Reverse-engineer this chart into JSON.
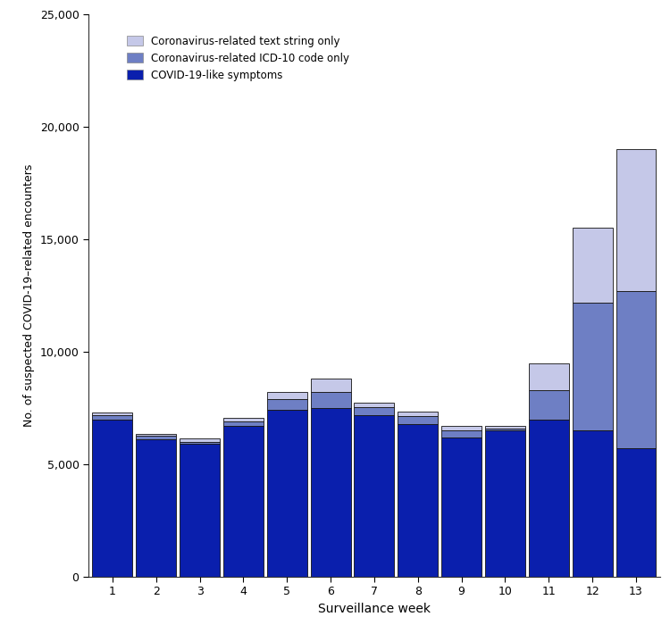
{
  "weeks": [
    1,
    2,
    3,
    4,
    5,
    6,
    7,
    8,
    9,
    10,
    11,
    12,
    13
  ],
  "covid_like": [
    7000,
    6100,
    5900,
    6700,
    7400,
    7500,
    7200,
    6800,
    6200,
    6500,
    7000,
    6500,
    5700
  ],
  "icd10_only": [
    200,
    150,
    100,
    200,
    500,
    700,
    350,
    350,
    300,
    100,
    1300,
    5700,
    7000
  ],
  "text_only": [
    100,
    100,
    150,
    150,
    300,
    600,
    200,
    200,
    200,
    100,
    1200,
    3300,
    6300
  ],
  "color_covid": "#0a1fad",
  "color_icd10": "#6e7fc4",
  "color_text": "#c5c8e8",
  "ylim": [
    0,
    25000
  ],
  "yticks": [
    0,
    5000,
    10000,
    15000,
    20000,
    25000
  ],
  "ylabel": "No. of suspected COVID-19–related encounters",
  "xlabel": "Surveillance week",
  "legend_labels": [
    "Coronavirus-related text string only",
    "Coronavirus-related ICD-10 code only",
    "COVID-19-like symptoms"
  ],
  "edgecolor": "#111111",
  "linewidth": 0.6,
  "bar_width": 0.92,
  "figsize": [
    7.5,
    7.0
  ],
  "dpi": 100
}
